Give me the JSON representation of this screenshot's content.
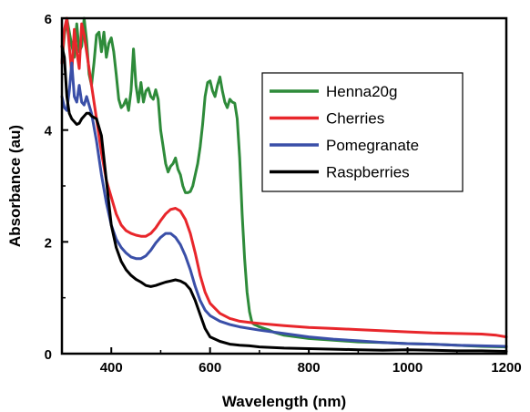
{
  "chart_data": {
    "type": "line",
    "xlabel": "Wavelength (nm)",
    "ylabel": "Absorbance (au)",
    "xlim": [
      300,
      1200
    ],
    "ylim": [
      0,
      6
    ],
    "x_ticks": [
      400,
      600,
      800,
      1000,
      1200
    ],
    "y_ticks": [
      0,
      2,
      4,
      6
    ],
    "legend_position": "upper-right",
    "grid": false,
    "series": [
      {
        "name": "Henna20g",
        "color": "#2e8b3a",
        "x": [
          300,
          305,
          310,
          318,
          325,
          330,
          335,
          340,
          345,
          350,
          355,
          360,
          365,
          370,
          375,
          380,
          385,
          390,
          395,
          400,
          405,
          410,
          415,
          420,
          425,
          430,
          435,
          440,
          445,
          450,
          455,
          460,
          465,
          470,
          475,
          480,
          485,
          490,
          495,
          500,
          505,
          510,
          515,
          520,
          525,
          530,
          535,
          540,
          545,
          550,
          555,
          560,
          565,
          570,
          575,
          580,
          585,
          590,
          595,
          600,
          605,
          610,
          615,
          620,
          625,
          630,
          635,
          640,
          645,
          650,
          655,
          660,
          665,
          670,
          675,
          680,
          685,
          690,
          695,
          700,
          710,
          720,
          730,
          750,
          800,
          850,
          900,
          950,
          1000,
          1050,
          1100,
          1150,
          1200
        ],
        "y": [
          5.2,
          5.7,
          6.0,
          5.6,
          5.3,
          5.9,
          5.4,
          5.5,
          6.0,
          5.6,
          5.0,
          4.8,
          5.2,
          5.7,
          5.75,
          5.4,
          5.75,
          5.3,
          5.55,
          5.65,
          5.4,
          5.0,
          4.55,
          4.4,
          4.45,
          4.55,
          4.35,
          4.7,
          5.45,
          4.8,
          4.5,
          4.85,
          4.5,
          4.7,
          4.75,
          4.6,
          4.55,
          4.72,
          4.55,
          4.0,
          3.7,
          3.4,
          3.25,
          3.35,
          3.4,
          3.5,
          3.3,
          3.2,
          3.0,
          2.88,
          2.88,
          2.9,
          3.0,
          3.2,
          3.4,
          3.7,
          4.1,
          4.6,
          4.85,
          4.88,
          4.7,
          4.6,
          4.8,
          4.95,
          4.7,
          4.5,
          4.4,
          4.55,
          4.5,
          4.48,
          4.2,
          3.5,
          2.5,
          1.7,
          1.1,
          0.75,
          0.55,
          0.52,
          0.5,
          0.48,
          0.45,
          0.42,
          0.38,
          0.33,
          0.27,
          0.24,
          0.21,
          0.2,
          0.18,
          0.17,
          0.15,
          0.13,
          0.12
        ]
      },
      {
        "name": "Cherries",
        "color": "#e8262b",
        "x": [
          300,
          305,
          310,
          315,
          320,
          325,
          330,
          335,
          340,
          345,
          350,
          360,
          370,
          380,
          390,
          400,
          410,
          420,
          430,
          440,
          450,
          460,
          470,
          480,
          490,
          500,
          510,
          520,
          530,
          540,
          550,
          560,
          570,
          580,
          590,
          600,
          620,
          640,
          660,
          680,
          700,
          750,
          800,
          850,
          900,
          950,
          1000,
          1050,
          1100,
          1150,
          1180,
          1200
        ],
        "y": [
          5.2,
          5.8,
          6.0,
          5.5,
          5.0,
          5.8,
          5.4,
          5.1,
          5.9,
          5.7,
          5.4,
          4.8,
          4.2,
          3.6,
          3.1,
          2.8,
          2.5,
          2.3,
          2.2,
          2.15,
          2.12,
          2.1,
          2.1,
          2.15,
          2.25,
          2.38,
          2.5,
          2.58,
          2.6,
          2.55,
          2.4,
          2.15,
          1.8,
          1.4,
          1.1,
          0.9,
          0.72,
          0.63,
          0.58,
          0.56,
          0.54,
          0.5,
          0.47,
          0.45,
          0.43,
          0.41,
          0.39,
          0.37,
          0.36,
          0.35,
          0.33,
          0.3
        ]
      },
      {
        "name": "Pomegranate",
        "color": "#3a4fa8",
        "x": [
          300,
          305,
          310,
          315,
          320,
          325,
          330,
          335,
          340,
          345,
          350,
          360,
          370,
          380,
          390,
          400,
          410,
          420,
          430,
          440,
          450,
          460,
          470,
          480,
          490,
          500,
          510,
          520,
          530,
          540,
          550,
          560,
          570,
          580,
          590,
          600,
          620,
          640,
          660,
          680,
          700,
          750,
          800,
          850,
          900,
          950,
          1000,
          1050,
          1100,
          1150,
          1200
        ],
        "y": [
          4.6,
          4.4,
          4.35,
          4.7,
          5.2,
          4.6,
          4.5,
          4.8,
          4.5,
          4.45,
          4.6,
          4.3,
          3.8,
          3.2,
          2.7,
          2.3,
          2.05,
          1.9,
          1.8,
          1.73,
          1.7,
          1.7,
          1.75,
          1.85,
          1.98,
          2.08,
          2.15,
          2.15,
          2.08,
          1.95,
          1.75,
          1.5,
          1.2,
          0.95,
          0.78,
          0.68,
          0.58,
          0.52,
          0.48,
          0.45,
          0.42,
          0.36,
          0.3,
          0.26,
          0.23,
          0.2,
          0.18,
          0.17,
          0.15,
          0.14,
          0.13
        ]
      },
      {
        "name": "Raspberries",
        "color": "#000000",
        "x": [
          300,
          305,
          310,
          315,
          320,
          325,
          330,
          335,
          340,
          345,
          350,
          355,
          360,
          370,
          380,
          390,
          400,
          410,
          420,
          430,
          440,
          450,
          460,
          470,
          480,
          490,
          500,
          510,
          520,
          530,
          540,
          550,
          560,
          570,
          580,
          590,
          600,
          620,
          640,
          660,
          680,
          700,
          750,
          800,
          850,
          900,
          950,
          1000,
          1050,
          1100,
          1150,
          1200
        ],
        "y": [
          5.5,
          5.3,
          4.6,
          4.3,
          4.2,
          4.15,
          4.1,
          4.12,
          4.2,
          4.25,
          4.3,
          4.3,
          4.25,
          4.2,
          3.9,
          3.1,
          2.3,
          1.9,
          1.65,
          1.5,
          1.4,
          1.33,
          1.28,
          1.22,
          1.2,
          1.22,
          1.25,
          1.28,
          1.3,
          1.32,
          1.3,
          1.25,
          1.15,
          0.95,
          0.7,
          0.45,
          0.3,
          0.22,
          0.17,
          0.15,
          0.14,
          0.12,
          0.1,
          0.09,
          0.08,
          0.07,
          0.06,
          0.07,
          0.06,
          0.05,
          0.05,
          0.04
        ]
      }
    ]
  }
}
